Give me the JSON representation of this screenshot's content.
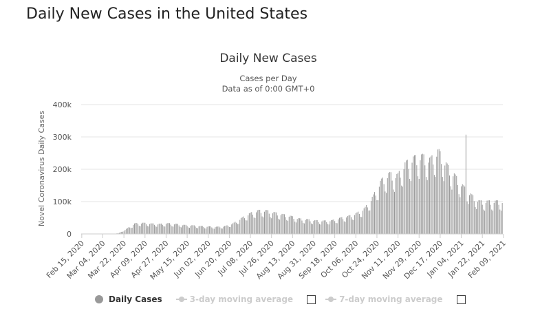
{
  "page": {
    "heading": "Daily New Cases in the United States"
  },
  "colors": {
    "bar": "#999999",
    "grid": "#e6e6e6",
    "axis": "#cccccc"
  },
  "chart_data": {
    "type": "bar",
    "title": "Daily New Cases",
    "subtitle_lines": [
      "Cases per Day",
      "Data as of 0:00 GMT+0"
    ],
    "xlabel": "",
    "ylabel": "Novel Coronavirus Daily Cases",
    "ylim": [
      0,
      400000
    ],
    "yticks": [
      0,
      100000,
      200000,
      300000,
      400000
    ],
    "ytick_labels": [
      "0",
      "100k",
      "200k",
      "300k",
      "400k"
    ],
    "x_start": "2020-02-15",
    "x_tick_labels": [
      "Feb 15, 2020",
      "Mar 04, 2020",
      "Mar 22, 2020",
      "Apr 09, 2020",
      "Apr 27, 2020",
      "May 15, 2020",
      "Jun 02, 2020",
      "Jun 20, 2020",
      "Jul 08, 2020",
      "Jul 26, 2020",
      "Aug 13, 2020",
      "Aug 31, 2020",
      "Sep 18, 2020",
      "Oct 06, 2020",
      "Oct 24, 2020",
      "Nov 11, 2020",
      "Nov 29, 2020",
      "Dec 17, 2020",
      "Jan 04, 2021",
      "Jan 22, 2021",
      "Feb 09, 2021"
    ],
    "x_tick_step_days": 18,
    "weekly_averages": [
      0,
      0,
      0,
      0,
      2000,
      15000,
      30000,
      31000,
      29000,
      28000,
      30000,
      28000,
      25000,
      24000,
      22000,
      21000,
      20000,
      22000,
      30000,
      45000,
      58000,
      66000,
      66000,
      60000,
      55000,
      50000,
      43000,
      41000,
      38000,
      37000,
      38000,
      45000,
      50000,
      58000,
      72000,
      105000,
      150000,
      170000,
      165000,
      200000,
      215000,
      220000,
      210000,
      235000,
      195000,
      165000,
      135000,
      110000,
      92000
    ],
    "peak": {
      "date": "Jan 08, 2021",
      "value": 307000
    },
    "legend": {
      "series": "Daily Cases",
      "avg3": "3-day moving average",
      "avg7": "7-day moving average"
    }
  }
}
